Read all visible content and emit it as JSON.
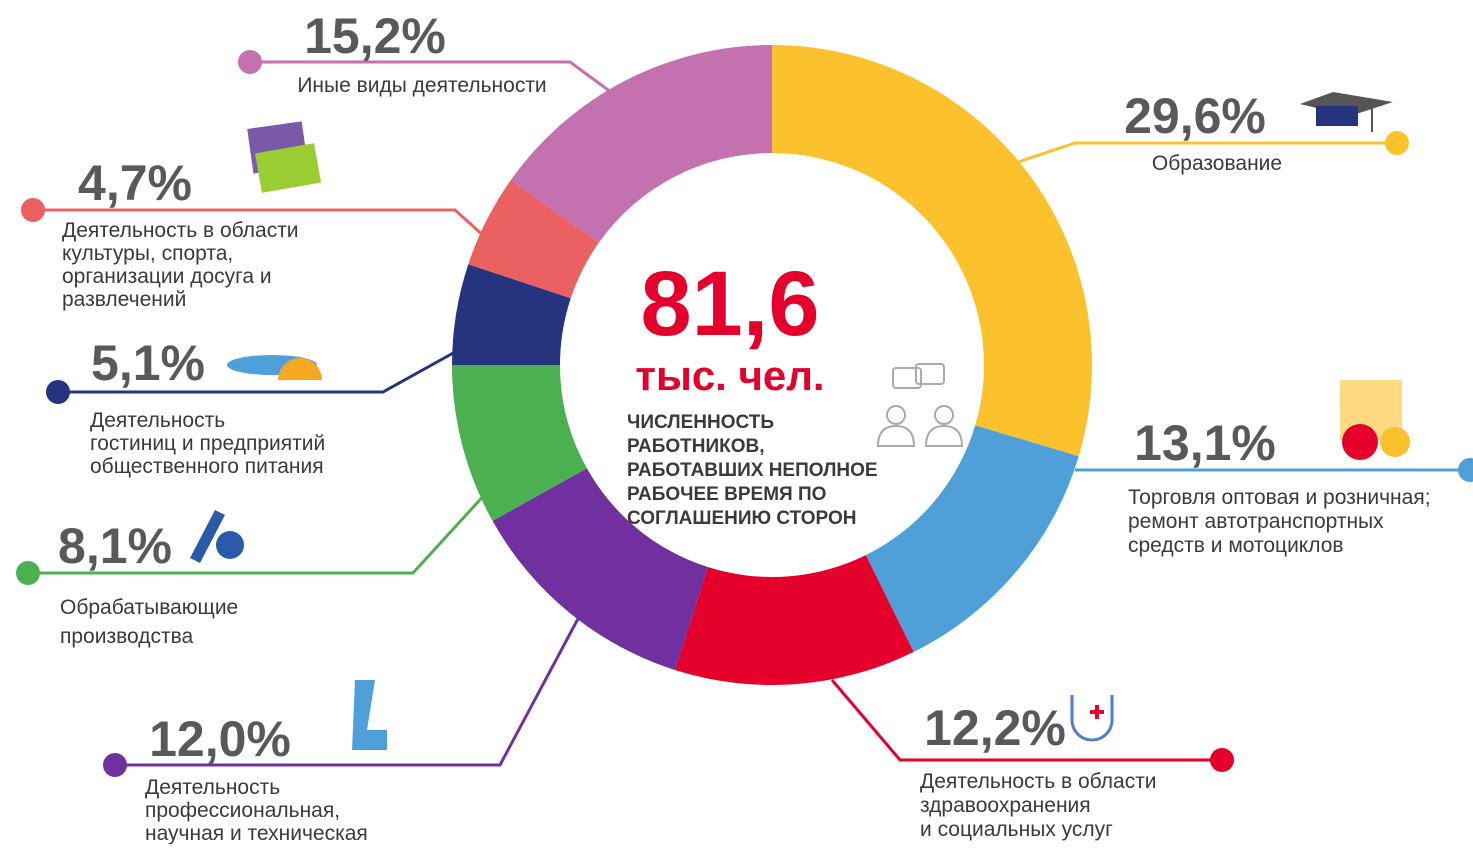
{
  "chart_data": {
    "type": "donut",
    "categories": [
      "Образование",
      "Торговля оптовая и розничная;\nремонт автотранспортных\nсредств и мотоциклов",
      "Деятельность в области\nздравоохранения\nи социальных услуг",
      "Деятельность\nпрофессиональная,\nнаучная и техническая",
      "Обрабатывающие\nпроизводства",
      "Деятельность\nгостиниц и предприятий\nобщественного питания",
      "Деятельность в области\nкультуры, спорта,\nорганизации досуга и\nразвлечений",
      "Иные виды деятельности"
    ],
    "values": [
      29.6,
      13.1,
      12.2,
      12.0,
      8.1,
      5.1,
      4.7,
      15.2
    ],
    "value_labels": [
      "29,6%",
      "13,1%",
      "12,2%",
      "12,0%",
      "8,1%",
      "5,1%",
      "4,7%",
      "15,2%"
    ],
    "colors": [
      "#fcc22d",
      "#4fa0d8",
      "#e4002b",
      "#7030a0",
      "#4caf50",
      "#263480",
      "#eb6060",
      "#c471b0"
    ],
    "center": {
      "value": 81.6,
      "label": "81,6",
      "unit": "тыс. чел.",
      "caption": "ЧИСЛЕННОСТЬ\nРАБОТНИКОВ,\nРАБОТАВШИХ НЕПОЛНОЕ\nРАБОЧЕЕ ВРЕМЯ ПО\nСОГЛАШЕНИЮ СТОРОН"
    }
  }
}
